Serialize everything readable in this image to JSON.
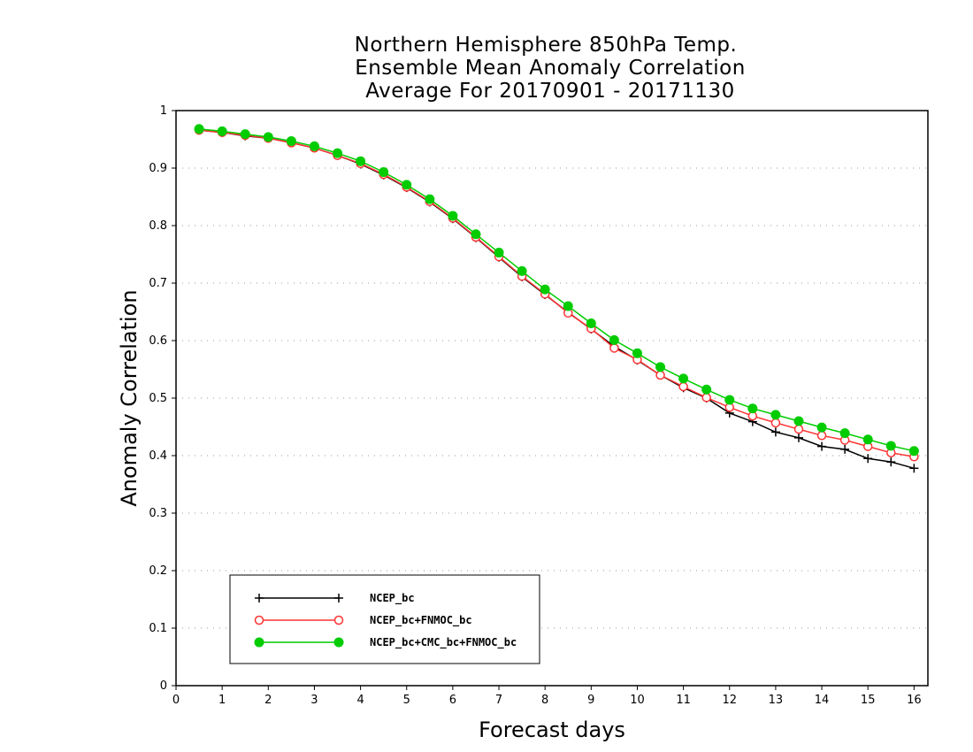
{
  "chart_data": {
    "type": "line",
    "title_lines": [
      "Northern Hemisphere 850hPa Temp.",
      "Ensemble Mean Anomaly Correlation",
      "Average For 20170901 - 20171130"
    ],
    "xlabel": "Forecast days",
    "ylabel": "Anomaly Correlation",
    "xlim": [
      0,
      16.3
    ],
    "ylim": [
      0,
      1
    ],
    "x_ticks": [
      "0",
      "1",
      "2",
      "3",
      "4",
      "5",
      "6",
      "7",
      "8",
      "9",
      "10",
      "11",
      "12",
      "13",
      "14",
      "15",
      "16"
    ],
    "y_ticks": [
      "0",
      "0.1",
      "0.2",
      "0.3",
      "0.4",
      "0.5",
      "0.6",
      "0.7",
      "0.8",
      "0.9",
      "1"
    ],
    "grid": "dotted horizontal",
    "legend_placement": "lower-left",
    "x": [
      0.5,
      1,
      1.5,
      2,
      2.5,
      3,
      3.5,
      4,
      4.5,
      5,
      5.5,
      6,
      6.5,
      7,
      7.5,
      8,
      8.5,
      9,
      9.5,
      10,
      10.5,
      11,
      11.5,
      12,
      12.5,
      13,
      13.5,
      14,
      14.5,
      15,
      15.5,
      16
    ],
    "series": [
      {
        "name": "NCEP_bc",
        "color": "#000000",
        "marker": "plus",
        "values": [
          0.966,
          0.962,
          0.956,
          0.952,
          0.944,
          0.935,
          0.922,
          0.907,
          0.888,
          0.866,
          0.841,
          0.812,
          0.779,
          0.745,
          0.711,
          0.68,
          0.649,
          0.62,
          0.59,
          0.566,
          0.54,
          0.518,
          0.5,
          0.474,
          0.459,
          0.441,
          0.431,
          0.416,
          0.411,
          0.395,
          0.389,
          0.378
        ]
      },
      {
        "name": "NCEP_bc+FNMOC_bc",
        "color": "#ff3333",
        "marker": "open-circle",
        "values": [
          0.966,
          0.962,
          0.957,
          0.952,
          0.944,
          0.935,
          0.922,
          0.908,
          0.889,
          0.867,
          0.842,
          0.813,
          0.78,
          0.746,
          0.712,
          0.681,
          0.648,
          0.621,
          0.587,
          0.567,
          0.54,
          0.52,
          0.501,
          0.484,
          0.469,
          0.457,
          0.446,
          0.435,
          0.427,
          0.416,
          0.405,
          0.398
        ]
      },
      {
        "name": "NCEP_bc+CMC_bc+FNMOC_bc",
        "color": "#00cc00",
        "marker": "filled-circle",
        "values": [
          0.968,
          0.964,
          0.959,
          0.954,
          0.947,
          0.938,
          0.926,
          0.912,
          0.893,
          0.871,
          0.846,
          0.817,
          0.785,
          0.753,
          0.721,
          0.689,
          0.66,
          0.63,
          0.601,
          0.578,
          0.554,
          0.534,
          0.515,
          0.497,
          0.482,
          0.471,
          0.46,
          0.449,
          0.439,
          0.428,
          0.417,
          0.408
        ]
      }
    ]
  }
}
